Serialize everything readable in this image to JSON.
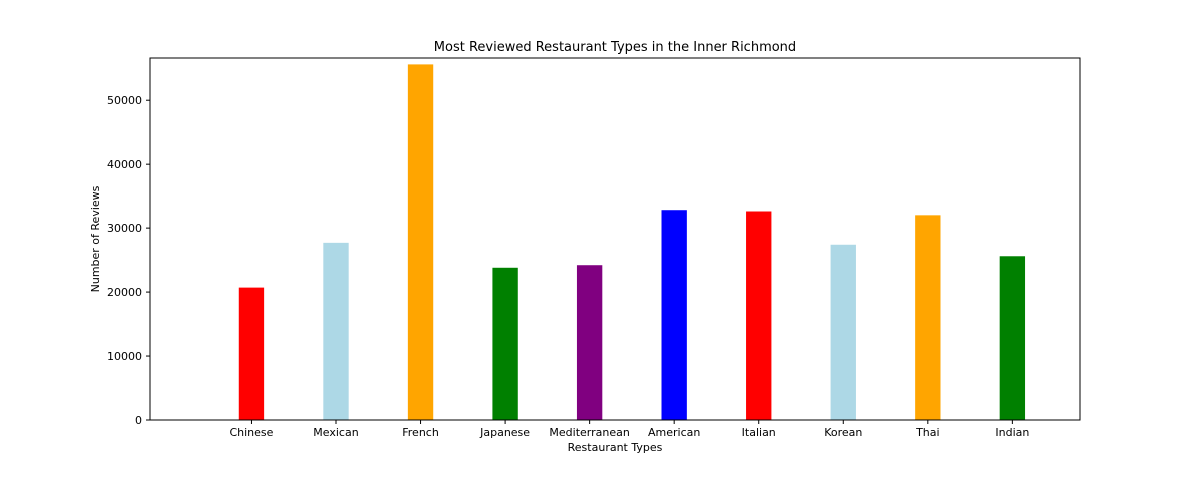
{
  "chart_data": {
    "type": "bar",
    "title": "Most Reviewed Restaurant Types in the Inner Richmond",
    "xlabel": "Restaurant Types",
    "ylabel": "Number of Reviews",
    "categories": [
      "Chinese",
      "Mexican",
      "French",
      "Japanese",
      "Mediterranean",
      "American",
      "Italian",
      "Korean",
      "Thai",
      "Indian"
    ],
    "values": [
      20700,
      27700,
      55600,
      23800,
      24200,
      32800,
      32600,
      27400,
      32000,
      25600
    ],
    "colors": [
      "#ff0000",
      "#add8e6",
      "#ffa500",
      "#008000",
      "#800080",
      "#0000ff",
      "#ff0000",
      "#add8e6",
      "#ffa500",
      "#008000"
    ],
    "ylim": [
      0,
      56600
    ],
    "yticks": [
      0,
      10000,
      20000,
      30000,
      40000,
      50000
    ],
    "ytick_labels": [
      "0",
      "10000",
      "20000",
      "30000",
      "40000",
      "50000"
    ],
    "grid": false,
    "legend": "none"
  }
}
